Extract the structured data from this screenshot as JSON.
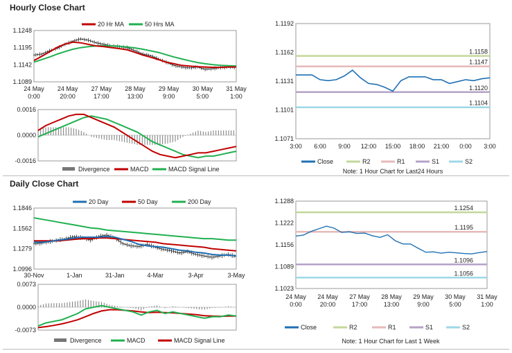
{
  "section_titles": {
    "hourly": "Hourly Close Chart",
    "daily": "Daily Close Chart"
  },
  "colors": {
    "ma20": "#c00000",
    "ma50": "#20b050",
    "ma200": "#20b050",
    "close": "#1f6fb4",
    "r2": "#c4d79b",
    "r1": "#e6b9b8",
    "s1": "#b3a2c7",
    "s2": "#9ed8e6",
    "divergence": "#777777",
    "macd": "#c00000",
    "signal": "#20b050"
  },
  "chart_data": [
    {
      "id": "hourly-price",
      "type": "line",
      "legend": [
        "20 Hr MA",
        "50 Hrs MA"
      ],
      "y_ticks": [
        "1.1248",
        "1.1195",
        "1.1142",
        "1.1089"
      ],
      "ylim": [
        1.1089,
        1.1248
      ],
      "x_ticks": [
        [
          "24 May",
          "0:00"
        ],
        [
          "24 May",
          "20:00"
        ],
        [
          "27 May",
          "17:00"
        ],
        [
          "28 May",
          "13:00"
        ],
        [
          "29 May",
          "9:00"
        ],
        [
          "30 May",
          "5:00"
        ],
        [
          "31 May",
          "1:00"
        ]
      ],
      "series": [
        {
          "name": "Close",
          "values": [
            1.1172,
            1.1175,
            1.1185,
            1.1193,
            1.1205,
            1.1215,
            1.1222,
            1.1218,
            1.121,
            1.1205,
            1.12,
            1.1198,
            1.1195,
            1.1185,
            1.1175,
            1.117,
            1.116,
            1.115,
            1.114,
            1.1135,
            1.1132,
            1.1135,
            1.1128,
            1.113,
            1.1133,
            1.1135,
            1.1134
          ]
        },
        {
          "name": "20 Hr MA",
          "values": [
            1.1155,
            1.1168,
            1.1182,
            1.1196,
            1.1206,
            1.1212,
            1.121,
            1.1205,
            1.12,
            1.1198,
            1.1195,
            1.1192,
            1.1188,
            1.118,
            1.1172,
            1.1165,
            1.1158,
            1.115,
            1.1145,
            1.114,
            1.1138,
            1.1136,
            1.1135,
            1.1134,
            1.1134,
            1.1135,
            1.1135
          ]
        },
        {
          "name": "50 Hrs MA",
          "values": [
            1.115,
            1.1158,
            1.1166,
            1.1175,
            1.1183,
            1.119,
            1.1195,
            1.1198,
            1.12,
            1.1201,
            1.12,
            1.1199,
            1.1197,
            1.1194,
            1.119,
            1.1185,
            1.118,
            1.1173,
            1.1166,
            1.116,
            1.1154,
            1.1149,
            1.1145,
            1.1142,
            1.114,
            1.1139,
            1.1138
          ]
        }
      ]
    },
    {
      "id": "hourly-macd",
      "type": "line",
      "legend": [
        "Divergence",
        "MACD",
        "MACD Signal Line"
      ],
      "y_ticks": [
        "0.0016",
        "0.0000",
        "-0.0016"
      ],
      "ylim": [
        -0.0016,
        0.0016
      ],
      "series": [
        {
          "name": "MACD",
          "values": [
            0.0003,
            0.0006,
            0.0008,
            0.001,
            0.0012,
            0.0013,
            0.0013,
            0.0011,
            0.0009,
            0.0007,
            0.0005,
            0.0002,
            -0.0001,
            -0.0004,
            -0.0007,
            -0.001,
            -0.0012,
            -0.0013,
            -0.0014,
            -0.0013,
            -0.0012,
            -0.0011,
            -0.0011,
            -0.001,
            -0.0009,
            -0.0008,
            -0.0007
          ]
        },
        {
          "name": "MACD Signal Line",
          "values": [
            -0.0001,
            0.0001,
            0.0003,
            0.0005,
            0.0007,
            0.0009,
            0.0011,
            0.0012,
            0.0011,
            0.001,
            0.0008,
            0.0006,
            0.0004,
            0.0002,
            -0.0001,
            -0.0004,
            -0.0006,
            -0.0008,
            -0.001,
            -0.0012,
            -0.0013,
            -0.0014,
            -0.0013,
            -0.0013,
            -0.0012,
            -0.0011,
            -0.001
          ]
        },
        {
          "name": "Divergence",
          "values": [
            0.0004,
            0.0005,
            0.0005,
            0.0005,
            0.0005,
            0.0004,
            0.0002,
            -0.0001,
            -0.0002,
            -0.0003,
            -0.0003,
            -0.0004,
            -0.0005,
            -0.0006,
            -0.0006,
            -0.0006,
            -0.0006,
            -0.0005,
            -0.0004,
            -0.0001,
            0.0001,
            0.0003,
            0.0002,
            0.0003,
            0.0003,
            0.0003,
            0.0003
          ]
        }
      ]
    },
    {
      "id": "hourly-pivot",
      "type": "line",
      "y_ticks": [
        "1.1192",
        "1.1162",
        "1.1131",
        "1.1101",
        "1.1071"
      ],
      "ylim": [
        1.1071,
        1.1192
      ],
      "x_ticks": [
        "3:00",
        "6:00",
        "9:00",
        "12:00",
        "15:00",
        "18:00",
        "21:00",
        "0:00",
        "3:00"
      ],
      "levels": [
        {
          "name": "R2",
          "value": 1.1158,
          "label": "1.1158"
        },
        {
          "name": "R1",
          "value": 1.1147,
          "label": "1.1147"
        },
        {
          "name": "S1",
          "value": 1.112,
          "label": "1.1120"
        },
        {
          "name": "S2",
          "value": 1.1104,
          "label": "1.1104"
        }
      ],
      "close": [
        1.1138,
        1.1138,
        1.1138,
        1.1133,
        1.1132,
        1.1133,
        1.1137,
        1.1143,
        1.1135,
        1.1129,
        1.1128,
        1.1125,
        1.1121,
        1.1132,
        1.1136,
        1.1136,
        1.1136,
        1.1133,
        1.1133,
        1.1129,
        1.1131,
        1.1133,
        1.1132,
        1.1134,
        1.1135
      ],
      "legend": [
        "Close",
        "R2",
        "R1",
        "S1",
        "S2"
      ],
      "note": "Note: 1 Hour Chart for Last24 Hours"
    },
    {
      "id": "daily-price",
      "type": "line",
      "legend": [
        "20 Day",
        "50 Day",
        "200 Day"
      ],
      "y_ticks": [
        "1.1846",
        "1.1562",
        "1.1279",
        "1.0996"
      ],
      "ylim": [
        1.0996,
        1.1846
      ],
      "x_ticks": [
        "30-Nov",
        "1-Jan",
        "31-Jan",
        "4-Mar",
        "3-Apr",
        "3-May"
      ],
      "series": [
        {
          "name": "Close",
          "values": [
            1.135,
            1.136,
            1.138,
            1.14,
            1.142,
            1.145,
            1.143,
            1.14,
            1.145,
            1.147,
            1.143,
            1.135,
            1.132,
            1.131,
            1.134,
            1.13,
            1.127,
            1.125,
            1.122,
            1.124,
            1.12,
            1.118,
            1.116,
            1.118,
            1.12,
            1.117
          ]
        },
        {
          "name": "20 Day",
          "values": [
            1.137,
            1.137,
            1.138,
            1.14,
            1.141,
            1.143,
            1.144,
            1.144,
            1.144,
            1.145,
            1.144,
            1.141,
            1.138,
            1.134,
            1.132,
            1.131,
            1.13,
            1.128,
            1.126,
            1.125,
            1.123,
            1.122,
            1.12,
            1.119,
            1.119,
            1.118
          ]
        },
        {
          "name": "50 Day",
          "values": [
            1.139,
            1.139,
            1.139,
            1.139,
            1.14,
            1.141,
            1.142,
            1.142,
            1.143,
            1.143,
            1.142,
            1.141,
            1.14,
            1.139,
            1.138,
            1.137,
            1.135,
            1.134,
            1.133,
            1.132,
            1.131,
            1.13,
            1.128,
            1.127,
            1.126,
            1.125
          ]
        },
        {
          "name": "200 Day",
          "values": [
            1.171,
            1.169,
            1.167,
            1.165,
            1.163,
            1.161,
            1.159,
            1.157,
            1.156,
            1.154,
            1.153,
            1.152,
            1.151,
            1.15,
            1.149,
            1.148,
            1.147,
            1.146,
            1.145,
            1.144,
            1.143,
            1.142,
            1.142,
            1.141,
            1.14,
            1.14
          ]
        }
      ]
    },
    {
      "id": "daily-macd",
      "type": "line",
      "legend": [
        "Divergence",
        "MACD",
        "MACD Signal Line"
      ],
      "y_ticks": [
        "0.0073",
        "0.0000",
        "-0.0073"
      ],
      "ylim": [
        -0.0073,
        0.0073
      ],
      "series": [
        {
          "name": "MACD",
          "values": [
            -0.006,
            -0.005,
            -0.0045,
            -0.004,
            -0.003,
            -0.002,
            -0.0005,
            0.0,
            0.0005,
            0.0,
            -0.0005,
            -0.001,
            -0.0015,
            -0.0025,
            -0.0015,
            -0.001,
            -0.002,
            -0.0015,
            -0.002,
            -0.0025,
            -0.003,
            -0.0035,
            -0.003,
            -0.003,
            -0.0025,
            -0.0028
          ]
        },
        {
          "name": "MACD Signal Line",
          "values": [
            -0.0065,
            -0.0062,
            -0.0058,
            -0.0053,
            -0.0047,
            -0.004,
            -0.003,
            -0.002,
            -0.0012,
            -0.0008,
            -0.0008,
            -0.001,
            -0.0012,
            -0.0015,
            -0.0017,
            -0.0016,
            -0.0017,
            -0.0018,
            -0.002,
            -0.0022,
            -0.0024,
            -0.0027,
            -0.0028,
            -0.0029,
            -0.0028,
            -0.0028
          ]
        },
        {
          "name": "Divergence",
          "values": [
            0.0005,
            0.0012,
            0.0013,
            0.0013,
            0.0017,
            0.002,
            0.0025,
            0.002,
            0.0017,
            0.0008,
            0.0003,
            0.0,
            -0.0003,
            -0.001,
            0.0002,
            0.0006,
            -0.0003,
            0.0003,
            0.0,
            -0.0003,
            -0.0006,
            -0.0008,
            -0.0002,
            -0.0001,
            0.0003,
            0.0
          ]
        }
      ]
    },
    {
      "id": "daily-pivot",
      "type": "line",
      "y_ticks": [
        "1.1288",
        "1.1222",
        "1.1156",
        "1.1089",
        "1.1023"
      ],
      "ylim": [
        1.1023,
        1.1288
      ],
      "x_ticks": [
        [
          "24 May",
          "0:00"
        ],
        [
          "24 May",
          "20:00"
        ],
        [
          "27 May",
          "17:00"
        ],
        [
          "28 May",
          "13:00"
        ],
        [
          "29 May",
          "9:00"
        ],
        [
          "30 May",
          "5:00"
        ],
        [
          "31 May",
          "1:00"
        ]
      ],
      "levels": [
        {
          "name": "R2",
          "value": 1.1254,
          "label": "1.1254"
        },
        {
          "name": "R1",
          "value": 1.1195,
          "label": "1.1195"
        },
        {
          "name": "S1",
          "value": 1.1096,
          "label": "1.1096"
        },
        {
          "name": "S2",
          "value": 1.1056,
          "label": "1.1056"
        }
      ],
      "close": [
        1.1182,
        1.1185,
        1.1196,
        1.1204,
        1.1212,
        1.1206,
        1.1193,
        1.1195,
        1.119,
        1.1191,
        1.1183,
        1.1178,
        1.1186,
        1.1168,
        1.1158,
        1.1158,
        1.1145,
        1.1133,
        1.1134,
        1.113,
        1.1133,
        1.1131,
        1.1129,
        1.1128,
        1.1132,
        1.1135
      ],
      "legend": [
        "Close",
        "R2",
        "R1",
        "S1",
        "S2"
      ],
      "note": "Note: 1 Hour Chart for Last 1 Week"
    }
  ]
}
